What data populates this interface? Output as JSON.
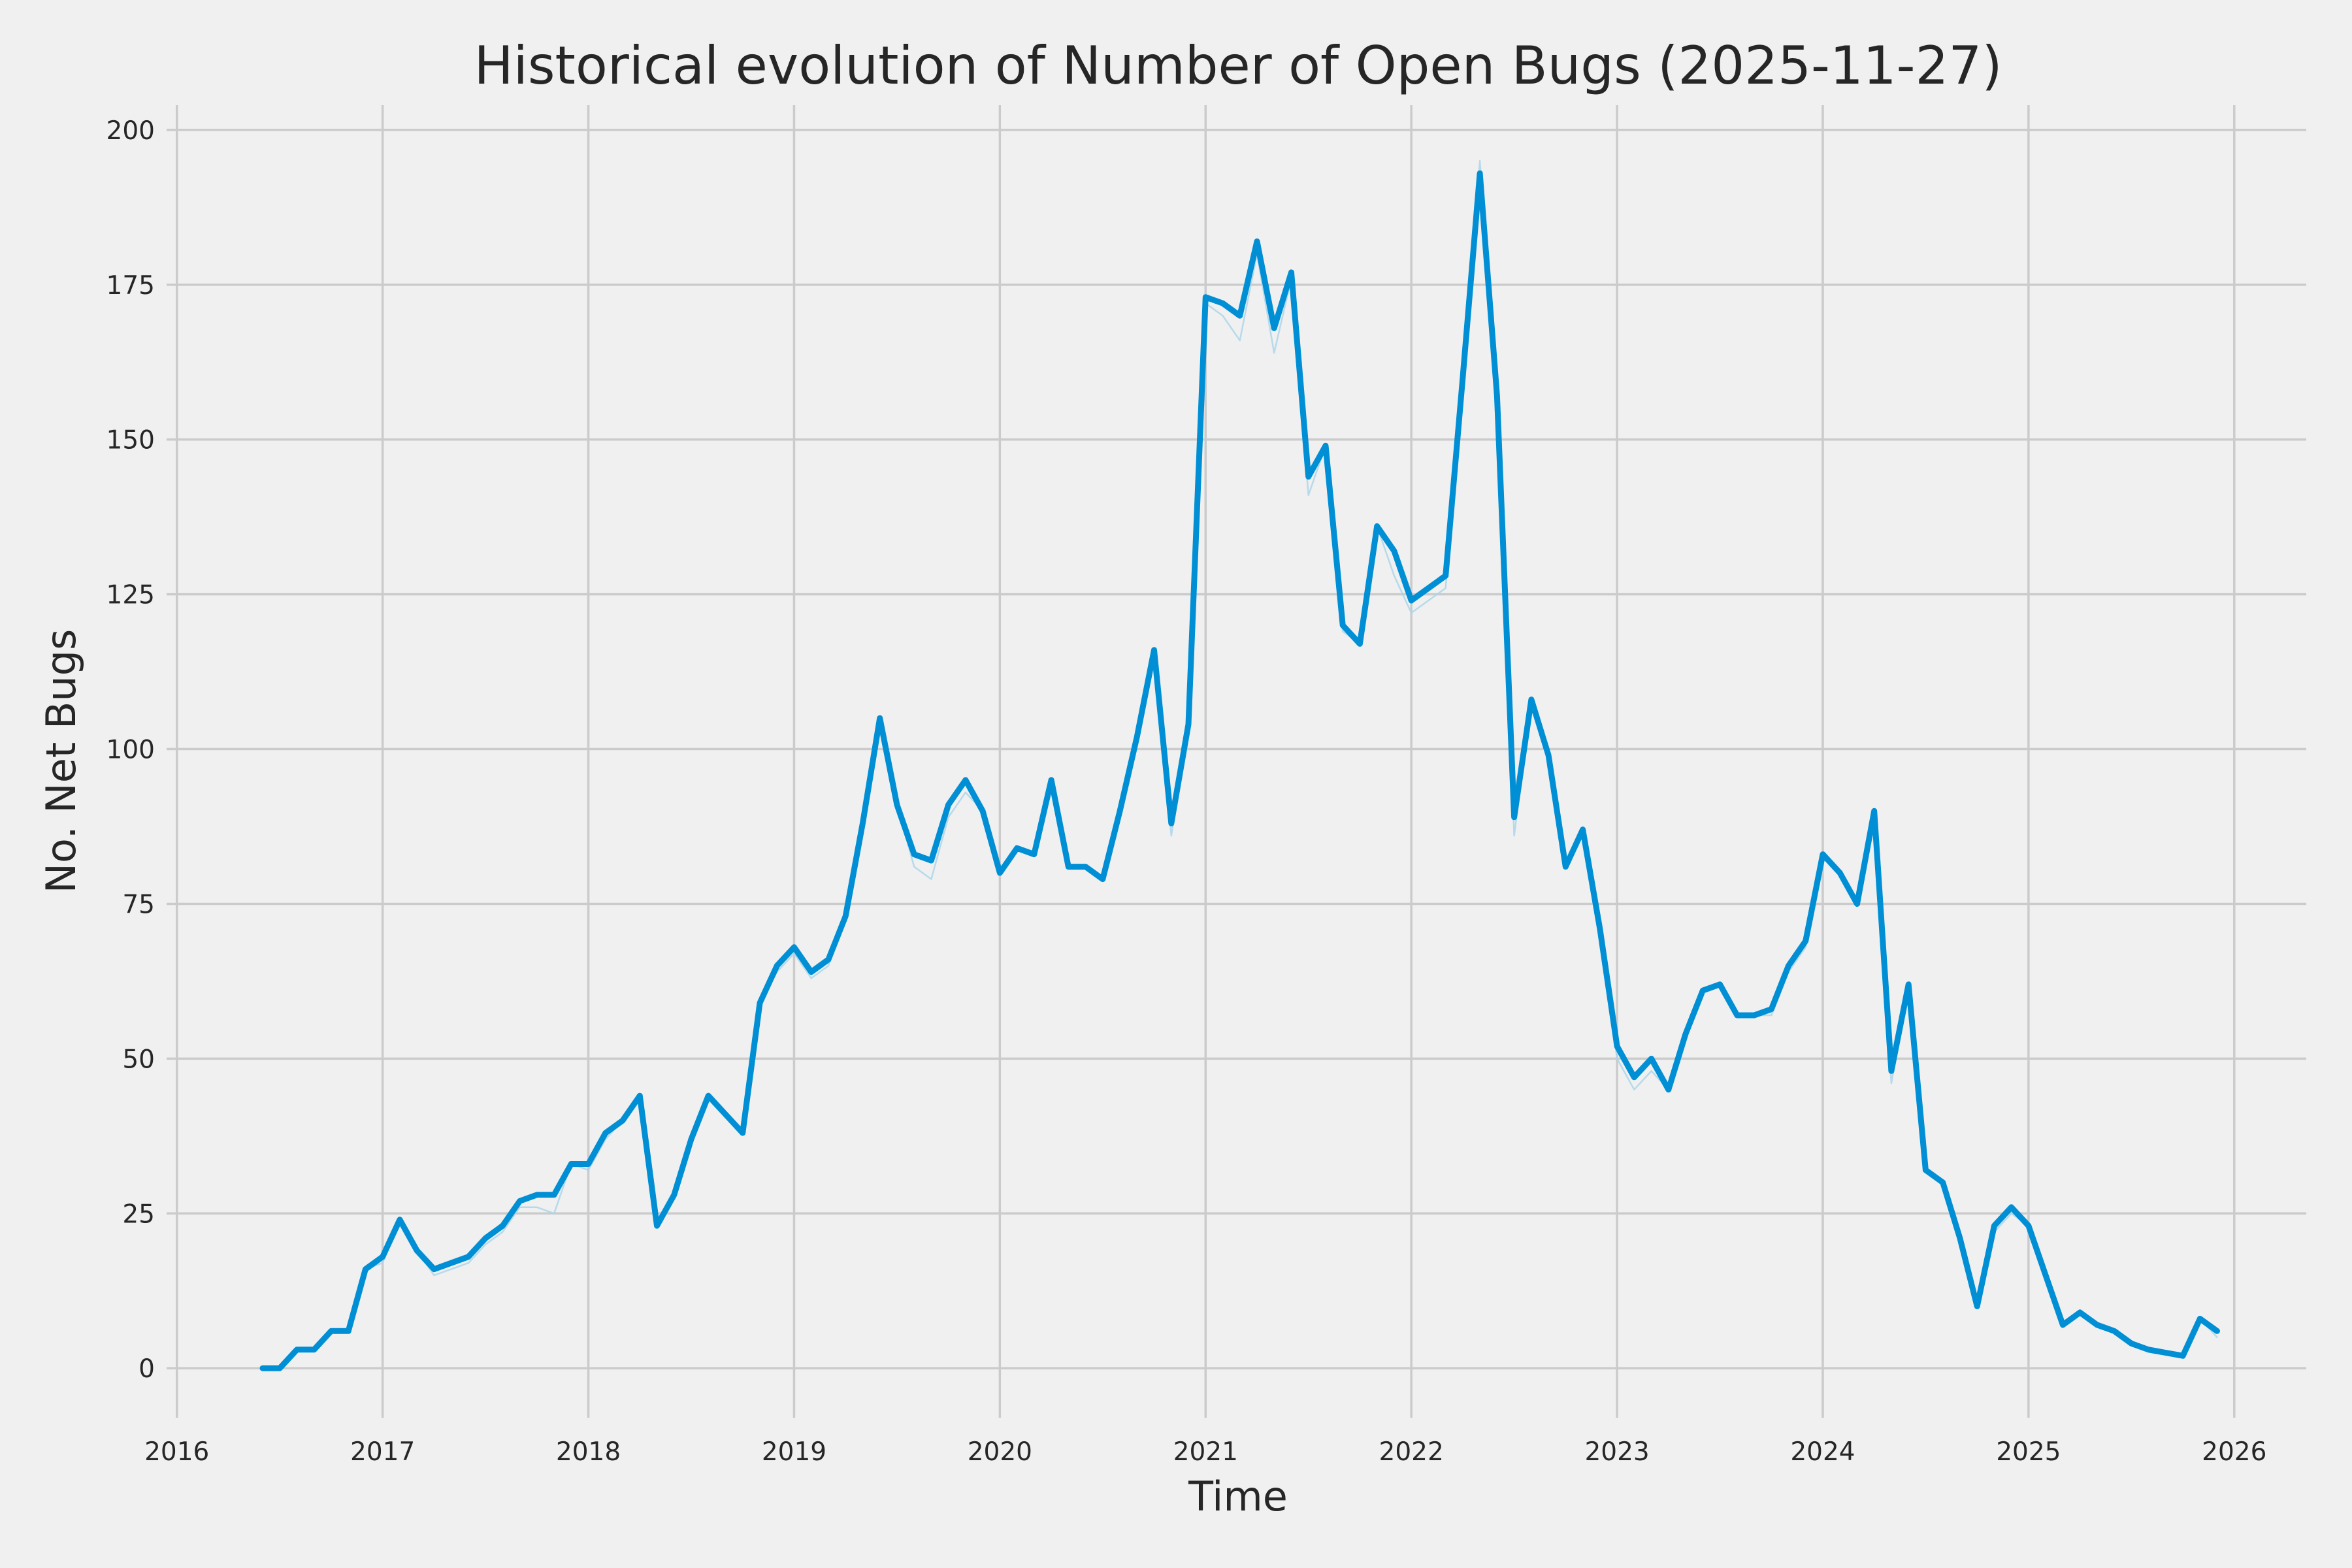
{
  "chart_data": {
    "type": "line",
    "title": "Historical evolution of Number of Open Bugs (2025-11-27)",
    "xlabel": "Time",
    "ylabel": "No. Net Bugs",
    "xlim": [
      2015.95,
      2026.35
    ],
    "ylim": [
      -8,
      204
    ],
    "grid": true,
    "x_ticks": [
      "2016",
      "2017",
      "2018",
      "2019",
      "2020",
      "2021",
      "2022",
      "2023",
      "2024",
      "2025",
      "2026"
    ],
    "y_ticks": [
      "0",
      "25",
      "50",
      "75",
      "100",
      "125",
      "150",
      "175",
      "200"
    ],
    "colors": {
      "main": "#008fd5",
      "faint": "#a8d4ea",
      "background": "#f0f0f0",
      "grid": "#cbcbcb"
    },
    "x": [
      "2016-06",
      "2016-07",
      "2016-08",
      "2016-09",
      "2016-10",
      "2016-11",
      "2016-12",
      "2017-01",
      "2017-02",
      "2017-03",
      "2017-04",
      "2017-05",
      "2017-06",
      "2017-07",
      "2017-08",
      "2017-09",
      "2017-10",
      "2017-11",
      "2017-12",
      "2018-01",
      "2018-02",
      "2018-03",
      "2018-04",
      "2018-05",
      "2018-06",
      "2018-07",
      "2018-08",
      "2018-09",
      "2018-10",
      "2018-11",
      "2018-12",
      "2019-01",
      "2019-02",
      "2019-03",
      "2019-04",
      "2019-05",
      "2019-06",
      "2019-07",
      "2019-08",
      "2019-09",
      "2019-10",
      "2019-11",
      "2019-12",
      "2020-01",
      "2020-02",
      "2020-03",
      "2020-04",
      "2020-05",
      "2020-06",
      "2020-07",
      "2020-08",
      "2020-09",
      "2020-10",
      "2020-11",
      "2020-12",
      "2021-01",
      "2021-02",
      "2021-03",
      "2021-04",
      "2021-05",
      "2021-06",
      "2021-07",
      "2021-08",
      "2021-09",
      "2021-10",
      "2021-11",
      "2021-12",
      "2022-01",
      "2022-02",
      "2022-03",
      "2022-04",
      "2022-05",
      "2022-06",
      "2022-07",
      "2022-08",
      "2022-09",
      "2022-10",
      "2022-11",
      "2022-12",
      "2023-01",
      "2023-02",
      "2023-03",
      "2023-04",
      "2023-05",
      "2023-06",
      "2023-07",
      "2023-08",
      "2023-09",
      "2023-10",
      "2023-11",
      "2023-12",
      "2024-01",
      "2024-02",
      "2024-03",
      "2024-04",
      "2024-05",
      "2024-06",
      "2024-07",
      "2024-08",
      "2024-09",
      "2024-10",
      "2024-11",
      "2024-12",
      "2025-01",
      "2025-02",
      "2025-03",
      "2025-04",
      "2025-05",
      "2025-06",
      "2025-07",
      "2025-08",
      "2025-09",
      "2025-10",
      "2025-11",
      "2025-12"
    ],
    "series": [
      {
        "style": "faint",
        "values": [
          0,
          0,
          3,
          3,
          6,
          6,
          16,
          17,
          24,
          19,
          15,
          16,
          17,
          20,
          22,
          26,
          26,
          25,
          33,
          32,
          37,
          40,
          44,
          23,
          28,
          37,
          44,
          41,
          38,
          59,
          64,
          67,
          63,
          65,
          73,
          88,
          105,
          91,
          81,
          79,
          89,
          93,
          90,
          80,
          84,
          83,
          95,
          81,
          81,
          79,
          90,
          102,
          116,
          86,
          104,
          172,
          170,
          166,
          180,
          164,
          176,
          141,
          149,
          119,
          117,
          136,
          128,
          122,
          124,
          126,
          160,
          195,
          157,
          86,
          108,
          98,
          81,
          87,
          71,
          50,
          45,
          48,
          45,
          54,
          61,
          62,
          57,
          57,
          57,
          64,
          68,
          83,
          80,
          75,
          90,
          46,
          62,
          32,
          30,
          21,
          10,
          22,
          25,
          23,
          15,
          7,
          9,
          7,
          6,
          4,
          3,
          2.5,
          2,
          8,
          5
        ]
      },
      {
        "style": "main",
        "values": [
          0,
          0,
          3,
          3,
          6,
          6,
          16,
          18,
          24,
          19,
          16,
          17,
          18,
          21,
          23,
          27,
          28,
          28,
          33,
          33,
          38,
          40,
          44,
          23,
          28,
          37,
          44,
          41,
          38,
          59,
          65,
          68,
          64,
          66,
          73,
          88,
          105,
          91,
          83,
          82,
          91,
          95,
          90,
          80,
          84,
          83,
          95,
          81,
          81,
          79,
          90,
          102,
          116,
          88,
          104,
          173,
          172,
          170,
          182,
          168,
          177,
          144,
          149,
          120,
          117,
          136,
          132,
          124,
          126,
          128,
          160,
          193,
          157,
          89,
          108,
          99,
          81,
          87,
          71,
          52,
          47,
          50,
          45,
          54,
          61,
          62,
          57,
          57,
          58,
          65,
          69,
          83,
          80,
          75,
          90,
          48,
          62,
          32,
          30,
          21,
          10,
          23,
          26,
          23,
          15,
          7,
          9,
          7,
          6,
          4,
          3,
          2.5,
          2,
          8,
          6
        ]
      }
    ]
  }
}
